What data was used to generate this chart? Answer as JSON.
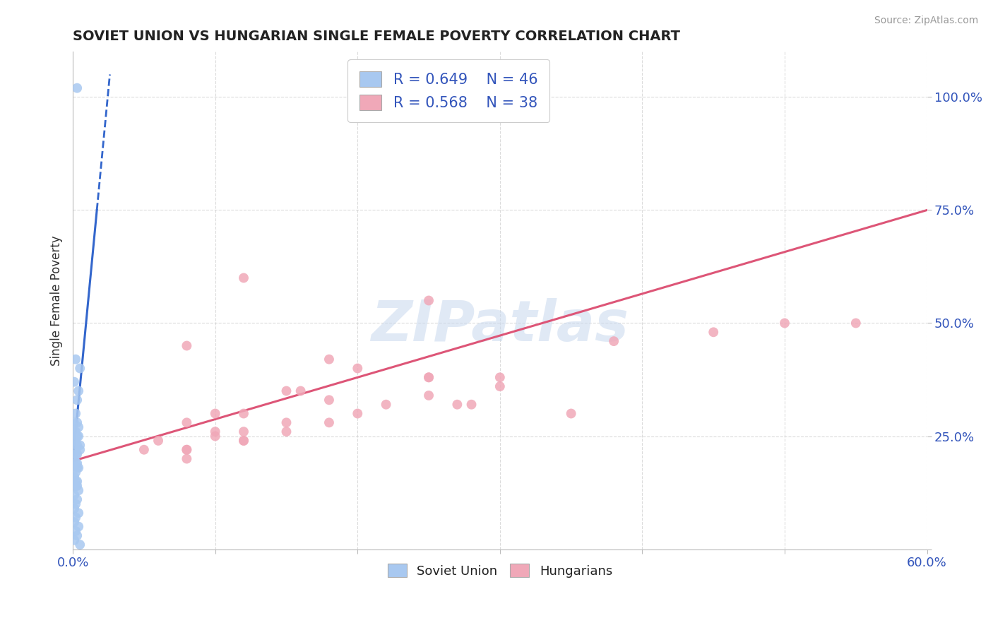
{
  "title": "SOVIET UNION VS HUNGARIAN SINGLE FEMALE POVERTY CORRELATION CHART",
  "source": "Source: ZipAtlas.com",
  "ylabel": "Single Female Poverty",
  "xlim": [
    0.0,
    0.6
  ],
  "ylim": [
    0.0,
    1.1
  ],
  "xticks": [
    0.0,
    0.1,
    0.2,
    0.3,
    0.4,
    0.5,
    0.6
  ],
  "xticklabels": [
    "0.0%",
    "",
    "",
    "",
    "",
    "",
    "60.0%"
  ],
  "yticks": [
    0.0,
    0.25,
    0.5,
    0.75,
    1.0
  ],
  "yticklabels": [
    "",
    "25.0%",
    "50.0%",
    "75.0%",
    "100.0%"
  ],
  "soviet_R": 0.649,
  "soviet_N": 46,
  "hungarian_R": 0.568,
  "hungarian_N": 38,
  "soviet_color": "#a8c8f0",
  "hungarian_color": "#f0a8b8",
  "soviet_line_color": "#3366cc",
  "hungarian_line_color": "#dd5577",
  "watermark": "ZIPatlas",
  "soviet_x": [
    0.003,
    0.002,
    0.001,
    0.004,
    0.002,
    0.003,
    0.001,
    0.004,
    0.002,
    0.003,
    0.005,
    0.002,
    0.001,
    0.003,
    0.004,
    0.002,
    0.001,
    0.003,
    0.002,
    0.004,
    0.001,
    0.003,
    0.002,
    0.001,
    0.004,
    0.002,
    0.003,
    0.001,
    0.005,
    0.002,
    0.003,
    0.001,
    0.004,
    0.002,
    0.003,
    0.002,
    0.003,
    0.001,
    0.004,
    0.002,
    0.003,
    0.001,
    0.005,
    0.002,
    0.003,
    0.005
  ],
  "soviet_y": [
    1.02,
    0.42,
    0.37,
    0.35,
    0.3,
    0.28,
    0.26,
    0.25,
    0.24,
    0.23,
    0.22,
    0.21,
    0.2,
    0.19,
    0.18,
    0.17,
    0.16,
    0.15,
    0.14,
    0.13,
    0.12,
    0.11,
    0.1,
    0.09,
    0.08,
    0.07,
    0.25,
    0.24,
    0.23,
    0.22,
    0.33,
    0.28,
    0.27,
    0.26,
    0.21,
    0.19,
    0.18,
    0.06,
    0.05,
    0.04,
    0.03,
    0.02,
    0.01,
    0.15,
    0.14,
    0.4
  ],
  "hungarian_x": [
    0.12,
    0.25,
    0.08,
    0.18,
    0.05,
    0.1,
    0.15,
    0.06,
    0.08,
    0.1,
    0.16,
    0.2,
    0.1,
    0.15,
    0.2,
    0.3,
    0.25,
    0.12,
    0.18,
    0.25,
    0.08,
    0.15,
    0.22,
    0.12,
    0.18,
    0.25,
    0.08,
    0.12,
    0.08,
    0.12,
    0.27,
    0.3,
    0.55,
    0.45,
    0.28,
    0.35,
    0.38,
    0.5
  ],
  "hungarian_y": [
    0.6,
    0.55,
    0.45,
    0.42,
    0.22,
    0.26,
    0.35,
    0.24,
    0.28,
    0.3,
    0.35,
    0.4,
    0.25,
    0.28,
    0.3,
    0.36,
    0.38,
    0.3,
    0.33,
    0.38,
    0.22,
    0.26,
    0.32,
    0.24,
    0.28,
    0.34,
    0.2,
    0.24,
    0.22,
    0.26,
    0.32,
    0.38,
    0.5,
    0.48,
    0.32,
    0.3,
    0.46,
    0.5
  ],
  "background_color": "#ffffff",
  "grid_color": "#cccccc",
  "soviet_line_x": [
    0.0,
    0.026
  ],
  "soviet_line_y": [
    0.195,
    1.05
  ],
  "hungarian_line_x": [
    0.0,
    0.6
  ],
  "hungarian_line_y": [
    0.195,
    0.75
  ]
}
